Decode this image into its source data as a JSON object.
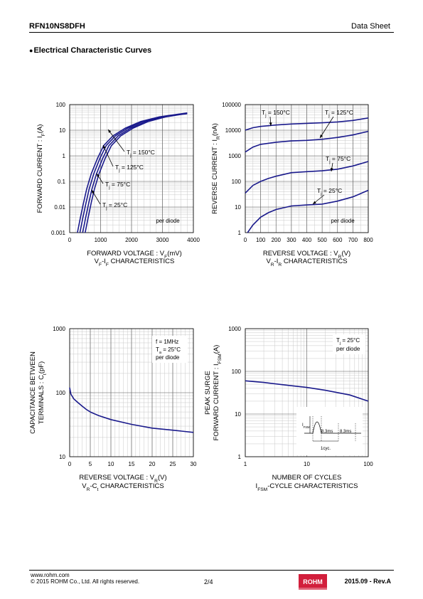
{
  "header": {
    "part": "RFN10NS8DFH",
    "doc": "Data Sheet"
  },
  "section_title": "Electrical Characteristic Curves",
  "footer": {
    "url": "www.rohm.com",
    "copyright": "© 2015  ROHM Co., Ltd. All rights reserved.",
    "page": "2/4",
    "revision": "2015.09 -  Rev.A",
    "logo": "ROHM"
  },
  "chart_data": [
    {
      "id": "vf",
      "type": "line",
      "ylabel": "FORWARD CURRENT : I_F(A)",
      "xlabel": "FORWARD VOLTAGE : V_F(mV)",
      "caption": "V_F-I_F CHARACTERISTICS",
      "xlim": [
        0,
        4000
      ],
      "ylim": [
        0.001,
        100
      ],
      "ylog": true,
      "xticks": [
        "0",
        "1000",
        "2000",
        "3000",
        "4000"
      ],
      "yticks": [
        "0.001",
        "0.01",
        "0.1",
        "1",
        "10",
        "100"
      ],
      "annotation": "per diode",
      "series": [
        {
          "name": "Tj = 150°C",
          "x": [
            250,
            350,
            450,
            550,
            700,
            900,
            1100,
            1400,
            1800,
            2300,
            2900,
            3500,
            3800
          ],
          "y": [
            0.001,
            0.004,
            0.015,
            0.05,
            0.2,
            0.8,
            2.5,
            6,
            12,
            22,
            33,
            42,
            47
          ]
        },
        {
          "name": "Tj = 125°C",
          "x": [
            330,
            430,
            530,
            630,
            780,
            980,
            1180,
            1480,
            1880,
            2380,
            2980,
            3550,
            3800
          ],
          "y": [
            0.001,
            0.004,
            0.015,
            0.05,
            0.2,
            0.8,
            2.5,
            6,
            12,
            22,
            33,
            42,
            46
          ]
        },
        {
          "name": "Tj = 75°C",
          "x": [
            420,
            520,
            620,
            720,
            870,
            1070,
            1270,
            1570,
            1970,
            2470,
            3050,
            3600,
            3800
          ],
          "y": [
            0.001,
            0.004,
            0.015,
            0.05,
            0.2,
            0.8,
            2.5,
            6,
            12,
            22,
            33,
            42,
            45
          ]
        },
        {
          "name": "Tj = 25°C",
          "x": [
            500,
            600,
            700,
            800,
            950,
            1150,
            1350,
            1650,
            2050,
            2550,
            3100,
            3650,
            3800
          ],
          "y": [
            0.001,
            0.004,
            0.015,
            0.05,
            0.2,
            0.8,
            2.5,
            6,
            12,
            22,
            33,
            42,
            44
          ]
        }
      ]
    },
    {
      "id": "vr",
      "type": "line",
      "ylabel": "REVERSE CURRENT : I_R(nA)",
      "xlabel": "REVERSE VOLTAGE : V_R(V)",
      "caption": "V_R-I_R CHARACTERISTICS",
      "xlim": [
        0,
        800
      ],
      "ylim": [
        1,
        100000
      ],
      "ylog": true,
      "xticks": [
        "0",
        "100",
        "200",
        "300",
        "400",
        "500",
        "600",
        "700",
        "800"
      ],
      "yticks": [
        "1",
        "10",
        "100",
        "1000",
        "10000",
        "100000"
      ],
      "annotation": "per diode",
      "series": [
        {
          "name": "Tj = 150°C",
          "x": [
            0,
            50,
            100,
            200,
            300,
            400,
            500,
            600,
            700,
            800
          ],
          "y": [
            10000,
            12500,
            14000,
            16000,
            17500,
            18500,
            19500,
            21000,
            24000,
            30000
          ]
        },
        {
          "name": "Tj = 125°C",
          "x": [
            0,
            50,
            100,
            200,
            300,
            400,
            500,
            600,
            700,
            800
          ],
          "y": [
            1400,
            2200,
            2800,
            3400,
            3800,
            4000,
            4400,
            5200,
            6500,
            9000
          ]
        },
        {
          "name": "Tj = 75°C",
          "x": [
            0,
            50,
            100,
            150,
            200,
            300,
            400,
            500,
            600,
            700,
            800
          ],
          "y": [
            35,
            70,
            100,
            130,
            160,
            220,
            240,
            260,
            300,
            400,
            600
          ]
        },
        {
          "name": "Tj = 25°C",
          "x": [
            15,
            50,
            100,
            150,
            200,
            300,
            400,
            500,
            600,
            700,
            800
          ],
          "y": [
            1,
            2,
            4,
            6,
            8,
            11,
            12,
            13,
            17,
            25,
            45
          ]
        }
      ]
    },
    {
      "id": "ct",
      "type": "line",
      "ylabel": "CAPACITANCE BETWEEN TERMINALS : C_t(pF)",
      "xlabel": "REVERSE VOLTAGE : V_R(V)",
      "caption": "V_R-C_t CHARACTERISTICS",
      "xlim": [
        0,
        30
      ],
      "ylim": [
        10,
        1000
      ],
      "ylog": true,
      "xticks": [
        "0",
        "5",
        "10",
        "15",
        "20",
        "25",
        "30"
      ],
      "yticks": [
        "10",
        "100",
        "1000"
      ],
      "annotation": [
        "f = 1MHz",
        "T_a = 25°C",
        "per diode"
      ],
      "series": [
        {
          "name": "",
          "x": [
            0,
            0.3,
            1,
            2,
            3,
            4,
            5,
            7,
            10,
            15,
            20,
            25,
            30
          ],
          "y": [
            120,
            95,
            80,
            70,
            62,
            55,
            50,
            44,
            38,
            32,
            28,
            26,
            24
          ]
        }
      ]
    },
    {
      "id": "ifsm",
      "type": "line",
      "ylabel": "PEAK SURGE FORWARD CURRENT : I_FSM(A)",
      "xlabel": "NUMBER OF CYCLES",
      "caption": "I_FSM-CYCLE CHARACTERISTICS",
      "xlim": [
        1,
        100
      ],
      "ylim": [
        1,
        1000
      ],
      "xlog": true,
      "ylog": true,
      "xticks": [
        "1",
        "10",
        "100"
      ],
      "yticks": [
        "1",
        "10",
        "100",
        "1000"
      ],
      "annotation": [
        "T_j = 25°C",
        "per diode"
      ],
      "inset": {
        "ifsm": "I_FSM",
        "t1": "8.3ms",
        "t2": "8.3ms",
        "cyc": "1cyc."
      },
      "series": [
        {
          "name": "",
          "x": [
            1,
            2,
            5,
            10,
            20,
            50,
            100
          ],
          "y": [
            60,
            55,
            47,
            42,
            36,
            28,
            20
          ]
        }
      ]
    }
  ]
}
